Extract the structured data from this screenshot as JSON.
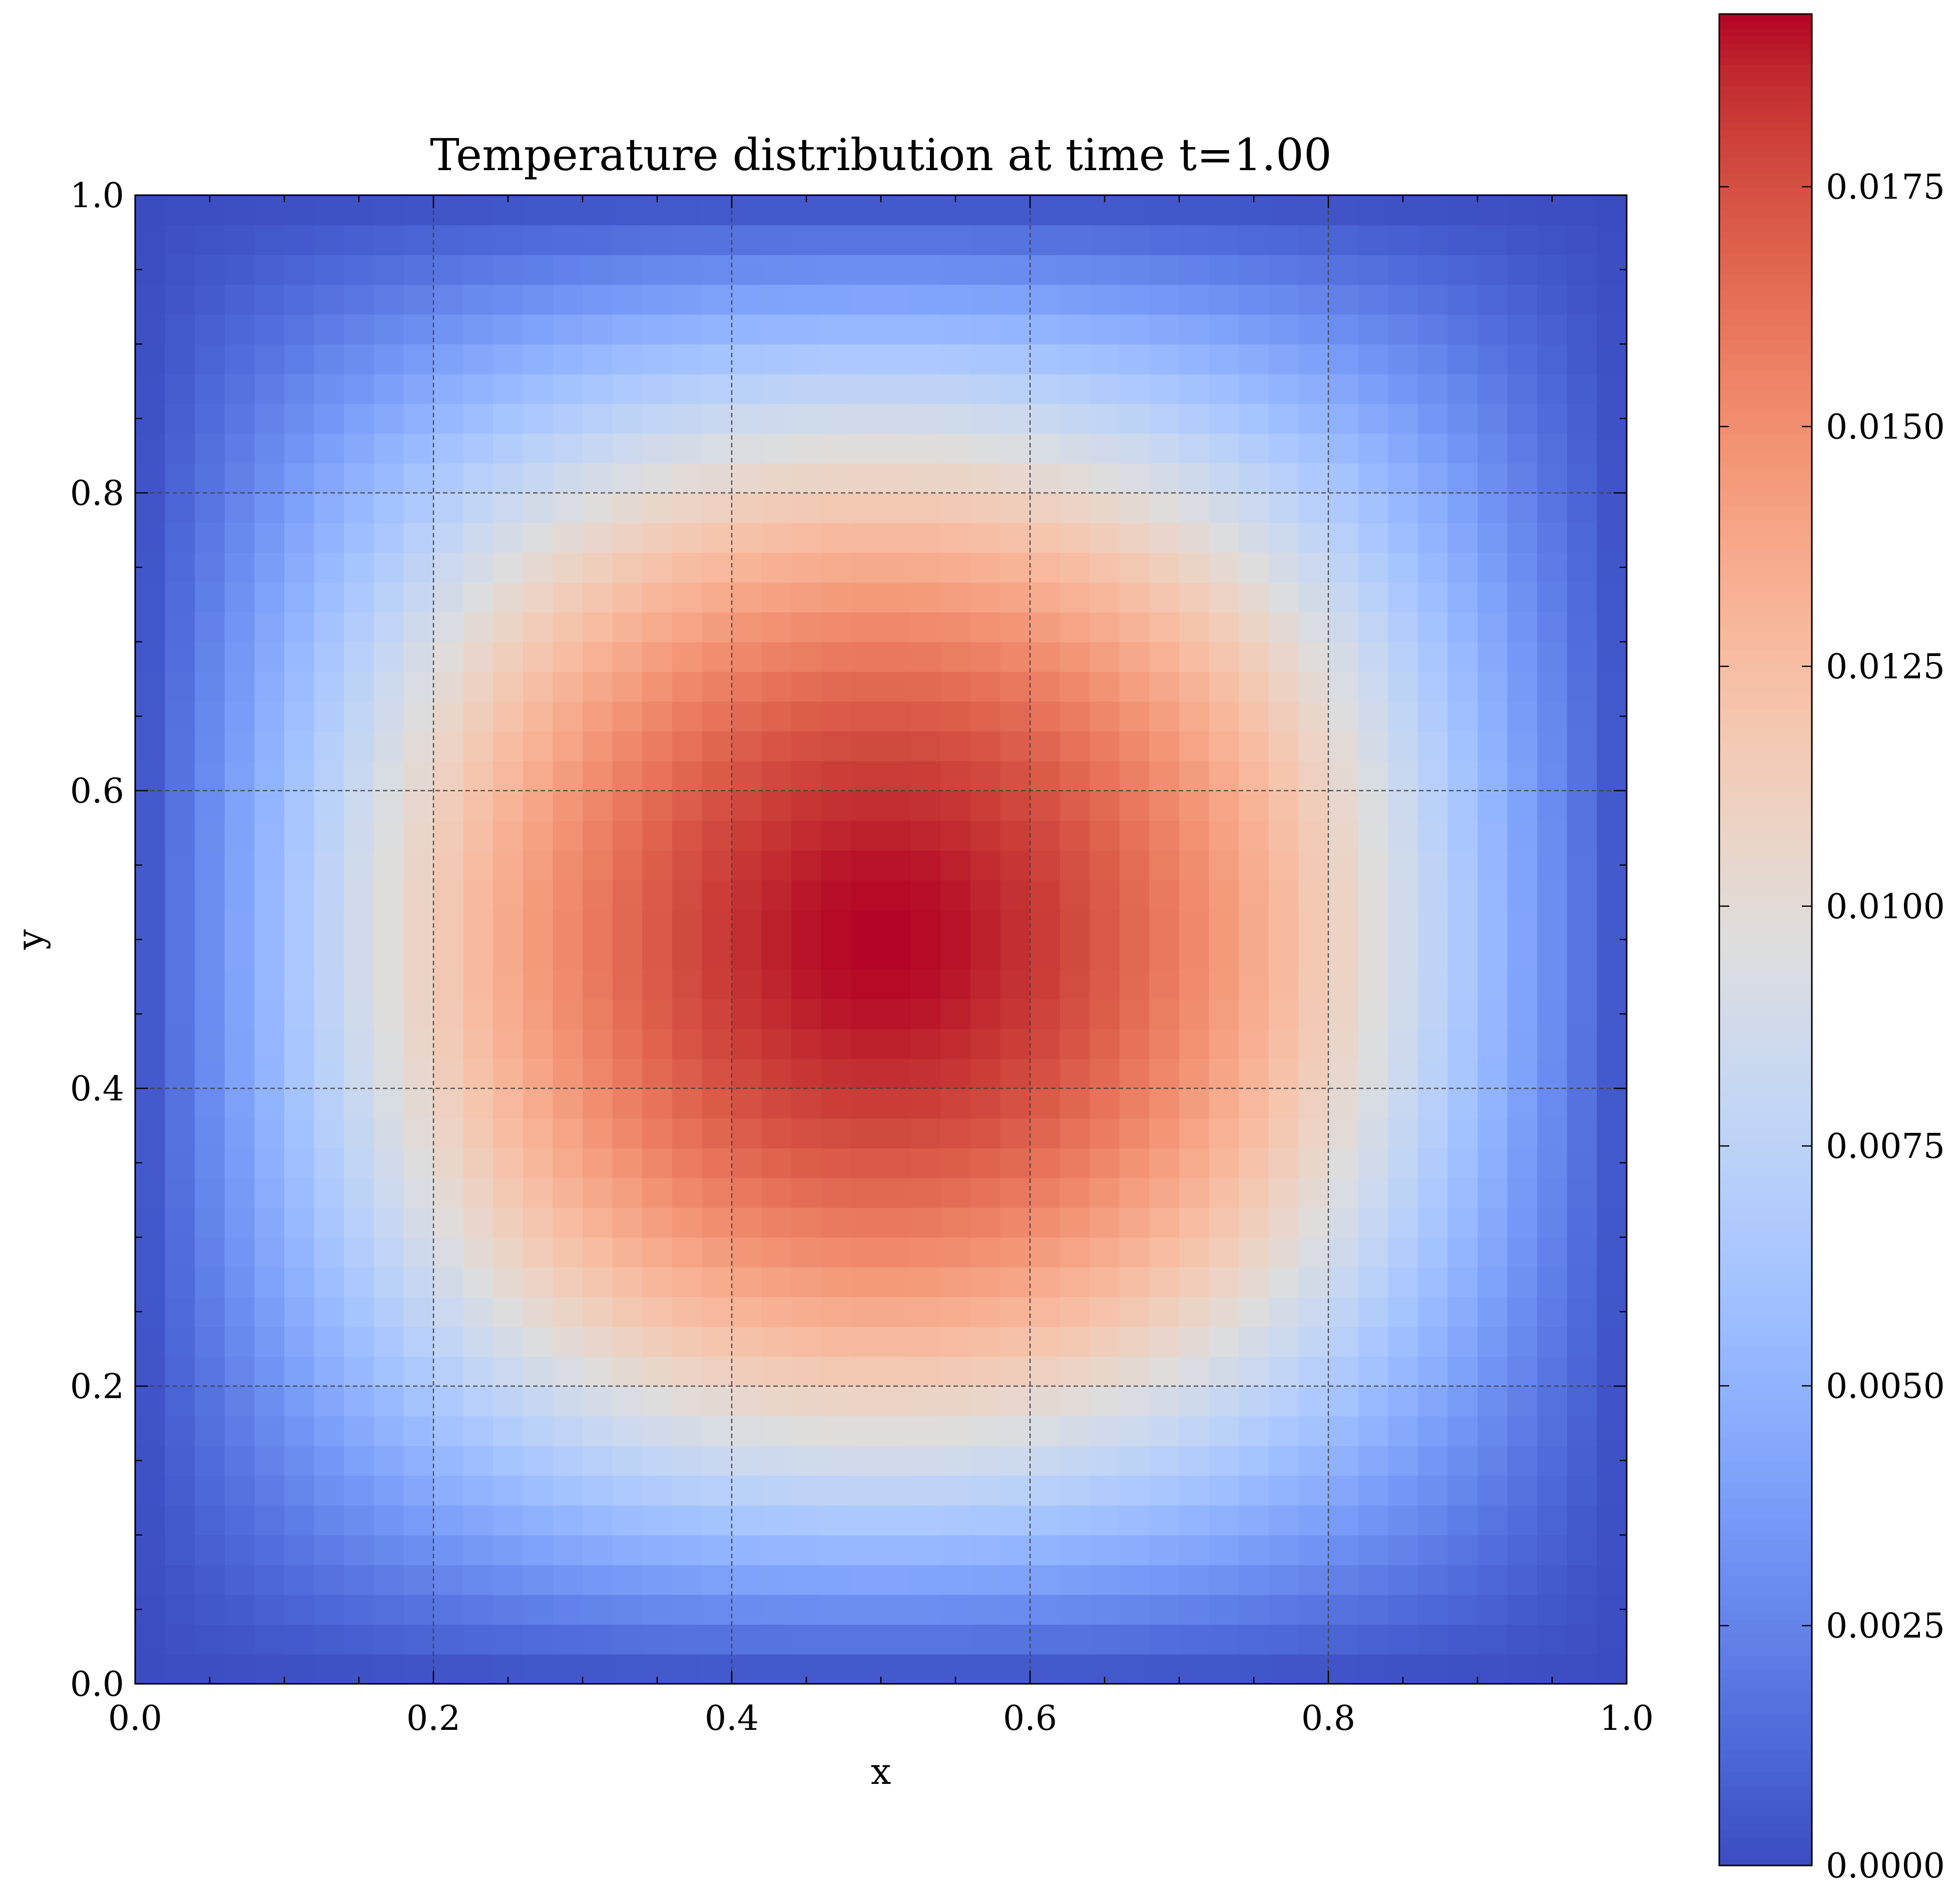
{
  "chart_data": {
    "type": "heatmap",
    "title": "Temperature distribution at time t=1.00",
    "xlabel": "x",
    "ylabel": "y",
    "xlim": [
      0.0,
      1.0
    ],
    "ylim": [
      0.0,
      1.0
    ],
    "x_ticks": [
      "0.0",
      "0.2",
      "0.4",
      "0.6",
      "0.8",
      "1.0"
    ],
    "y_ticks": [
      "0.0",
      "0.2",
      "0.4",
      "0.6",
      "0.8",
      "1.0"
    ],
    "grid": true,
    "grid_style": "dashed",
    "colormap": "coolwarm",
    "grid_resolution": [
      50,
      50
    ],
    "field": "value = vmax * sin(pi*x) * sin(pi*y), cell-centred samples",
    "vmin": 0.0,
    "vmax": 0.0193,
    "peak_location": [
      0.5,
      0.5
    ],
    "colorbar": {
      "ticks": [
        "0.0000",
        "0.0025",
        "0.0050",
        "0.0075",
        "0.0100",
        "0.0125",
        "0.0150",
        "0.0175"
      ],
      "tick_values": [
        0.0,
        0.0025,
        0.005,
        0.0075,
        0.01,
        0.0125,
        0.015,
        0.0175
      ],
      "range": [
        0.0,
        0.0193
      ],
      "position": "right"
    },
    "colors": {
      "low": "#3b4cc0",
      "mid": "#dddddd",
      "high": "#b40426",
      "grid": "#404040",
      "frame": "#000000"
    }
  }
}
